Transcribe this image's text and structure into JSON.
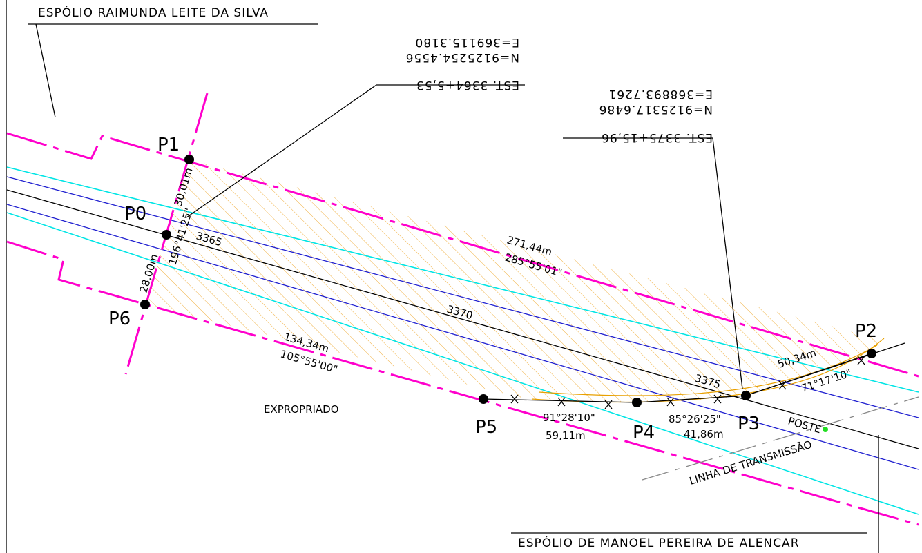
{
  "owners": {
    "top": "ESPÓLIO RAIMUNDA LEITE DA SILVA",
    "bottom": "ESPÓLIO DE MANOEL PEREIRA DE ALENCAR"
  },
  "coordinates": [
    {
      "station": "EST. 3364+5,53",
      "north": "N=9125254.4556",
      "east": "E=369115.3180"
    },
    {
      "station": "EST. 3375+15,96",
      "north": "N=9125317.6486",
      "east": "E=368893.7261"
    }
  ],
  "points": {
    "p0": "P0",
    "p1": "P1",
    "p2": "P2",
    "p3": "P3",
    "p4": "P4",
    "p5": "P5",
    "p6": "P6"
  },
  "stations": [
    "3365",
    "3370",
    "3375"
  ],
  "segments": {
    "p0_p1": {
      "length": "30,01m"
    },
    "p0_p6": {
      "length": "28,00m"
    },
    "p0": {
      "angle": "196°41'25\""
    },
    "p1_p2": {
      "length": "271,44m",
      "angle": "285°55'01\""
    },
    "p6_p5": {
      "length": "134,34m",
      "angle": "105°55'00\""
    },
    "p3_p2": {
      "length": "50,34m",
      "angle": "71°17'10\""
    },
    "p5_p4": {
      "length": "59,11m",
      "angle": "91°28'10\""
    },
    "p4_p3": {
      "length": "41,86m",
      "angle": "85°26'25\""
    }
  },
  "labels": {
    "area": "EXPROPRIADO",
    "pole": "POSTE",
    "power_line": "LINHA DE TRANSMISSÃO"
  }
}
